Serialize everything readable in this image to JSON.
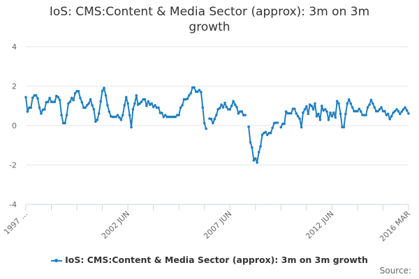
{
  "chart_data": {
    "type": "line",
    "title": "IoS: CMS:Content & Media Sector (approx): 3m on 3m growth",
    "x_start": "1997 JUN",
    "x_end": "2016 MAR",
    "x_frequency": "monthly",
    "x_tick_labels": [
      "1997 …",
      "2002 JUN",
      "2007 JUN",
      "2012 JUN",
      "2016 MAR"
    ],
    "y_ticks": [
      -4,
      -2,
      0,
      2,
      4
    ],
    "ylim": [
      -4,
      4
    ],
    "grid": true,
    "legend_position": "bottom",
    "color": "#1f7fc1",
    "series": [
      {
        "name": "IoS: CMS:Content & Media Sector (approx): 3m on 3m growth",
        "values": [
          1.44,
          0.71,
          0.91,
          0.91,
          1.41,
          1.53,
          1.53,
          1.38,
          0.91,
          0.61,
          0.8,
          0.82,
          1.18,
          1.2,
          1.4,
          1.2,
          1.2,
          1.2,
          1.5,
          1.44,
          1.29,
          0.53,
          0.12,
          0.12,
          0.53,
          1.12,
          1.2,
          1.4,
          1.29,
          1.64,
          1.74,
          1.74,
          1.4,
          1.18,
          0.91,
          0.91,
          1.03,
          1.12,
          1.33,
          1.03,
          0.82,
          0.2,
          0.29,
          0.61,
          1.23,
          1.76,
          1.91,
          1.53,
          1.03,
          0.71,
          0.47,
          0.44,
          0.44,
          0.44,
          0.53,
          0.41,
          0.29,
          0.53,
          1.03,
          1.44,
          1.12,
          0.53,
          -0.09,
          0.82,
          1.12,
          1.53,
          1.06,
          1.12,
          1.2,
          1.33,
          1.33,
          1.0,
          1.23,
          1.06,
          1.12,
          0.94,
          1.03,
          0.91,
          0.91,
          0.64,
          0.64,
          0.44,
          0.53,
          0.44,
          0.44,
          0.44,
          0.44,
          0.44,
          0.44,
          0.53,
          0.53,
          0.91,
          1.03,
          1.33,
          1.33,
          1.36,
          1.53,
          1.64,
          1.93,
          1.93,
          1.72,
          1.72,
          1.8,
          1.7,
          0.91,
          0.12,
          -0.16,
          null,
          0.35,
          0.33,
          0.12,
          0.33,
          0.53,
          0.82,
          0.88,
          1.06,
          0.92,
          1.15,
          0.94,
          0.82,
          0.82,
          1.0,
          1.24,
          1.06,
          0.94,
          0.61,
          0.71,
          0.71,
          0.53,
          0.53,
          null,
          -0.06,
          -0.85,
          -1.12,
          -1.77,
          -1.67,
          -1.88,
          -1.35,
          -1.06,
          -0.47,
          -0.38,
          -0.33,
          -0.47,
          -0.38,
          -0.38,
          -0.12,
          0.12,
          0.14,
          0.14,
          null,
          -0.09,
          0.09,
          0.09,
          0.71,
          0.62,
          0.62,
          0.62,
          0.85,
          0.85,
          0.61,
          0.47,
          0.35,
          -0.09,
          0.65,
          0.82,
          0.97,
          0.59,
          1.06,
          1.0,
          0.82,
          1.12,
          0.47,
          0.59,
          0.29,
          1.0,
          0.77,
          0.82,
          0.71,
          0.29,
          0.65,
          0.47,
          0.65,
          0.41,
          1.24,
          1.12,
          0.59,
          -0.08,
          -0.08,
          0.59,
          1.12,
          1.32,
          1.12,
          0.92,
          0.73,
          0.73,
          0.73,
          0.85,
          0.71,
          0.53,
          0.53,
          0.53,
          0.92,
          1.06,
          1.3,
          1.12,
          0.92,
          0.73,
          0.73,
          0.82,
          0.92,
          0.73,
          0.73,
          0.53,
          0.59,
          0.33,
          0.47,
          0.65,
          0.73,
          0.82,
          0.73,
          0.59,
          0.71,
          0.82,
          0.92,
          0.77,
          0.61
        ]
      }
    ]
  },
  "source_label": "Source:"
}
